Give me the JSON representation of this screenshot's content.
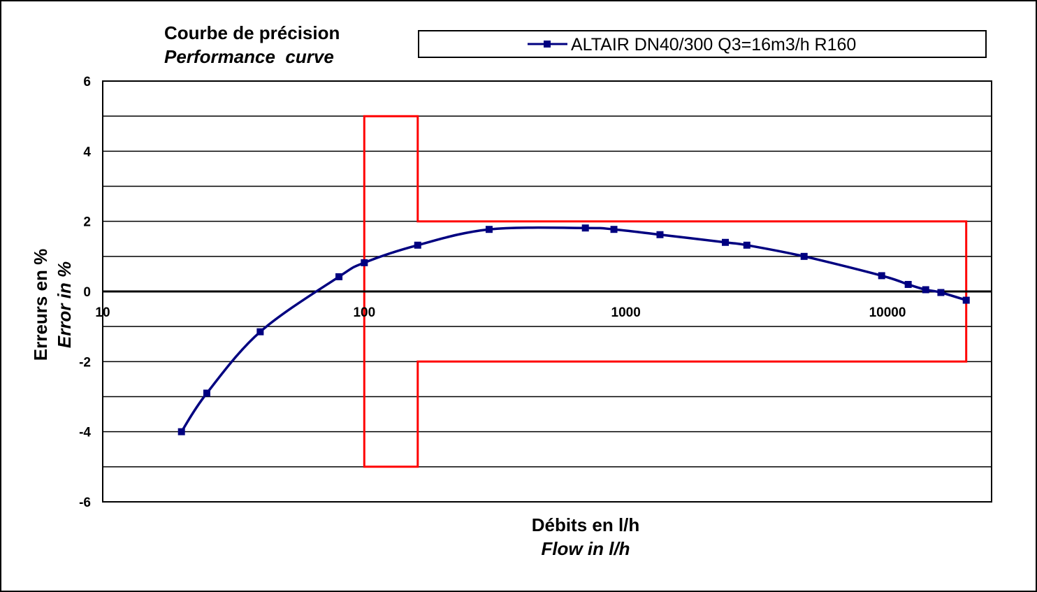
{
  "chart_data": {
    "type": "line",
    "title": "Courbe de précision",
    "subtitle": "Performance  curve",
    "xlabel": "Débits en l/h",
    "xlabel_en": "Flow in l/h",
    "ylabel": "Erreurs en %",
    "ylabel_en": "Error in %",
    "x_scale": "log",
    "xlim": [
      10,
      25000
    ],
    "ylim": [
      -6,
      6
    ],
    "x_ticks": [
      10,
      100,
      1000,
      10000
    ],
    "x_tick_labels": [
      "10",
      "100",
      "1000",
      "10000"
    ],
    "y_ticks": [
      -6,
      -4,
      -2,
      0,
      2,
      4,
      6
    ],
    "y_tick_labels": [
      "-6",
      "-4",
      "-2",
      "0",
      "2",
      "4",
      "6"
    ],
    "y_gridlines": [
      -6,
      -5,
      -4,
      -3,
      -2,
      -1,
      0,
      1,
      2,
      3,
      4,
      5,
      6
    ],
    "grid": "horizontal",
    "legend_position": "top",
    "series": [
      {
        "name": "ALTAIR DN40/300 Q3=16m3/h R160",
        "color": "#000080",
        "marker": "square",
        "x": [
          20,
          25,
          40,
          80,
          100,
          160,
          300,
          700,
          900,
          1350,
          2400,
          2900,
          4800,
          9500,
          12000,
          14000,
          16000,
          20000
        ],
        "y": [
          -4.0,
          -2.9,
          -1.15,
          0.42,
          0.82,
          1.32,
          1.77,
          1.81,
          1.77,
          1.62,
          1.4,
          1.32,
          1.0,
          0.45,
          0.2,
          0.05,
          -0.03,
          -0.25
        ]
      }
    ],
    "tolerance_limits": {
      "color": "#ff0000",
      "lower_zone": {
        "x_from": 100,
        "x_to": 160,
        "y_min": -5,
        "y_max": 5
      },
      "upper_zone": {
        "x_from": 160,
        "x_to": 20000,
        "y_min": -2,
        "y_max": 2
      }
    }
  }
}
